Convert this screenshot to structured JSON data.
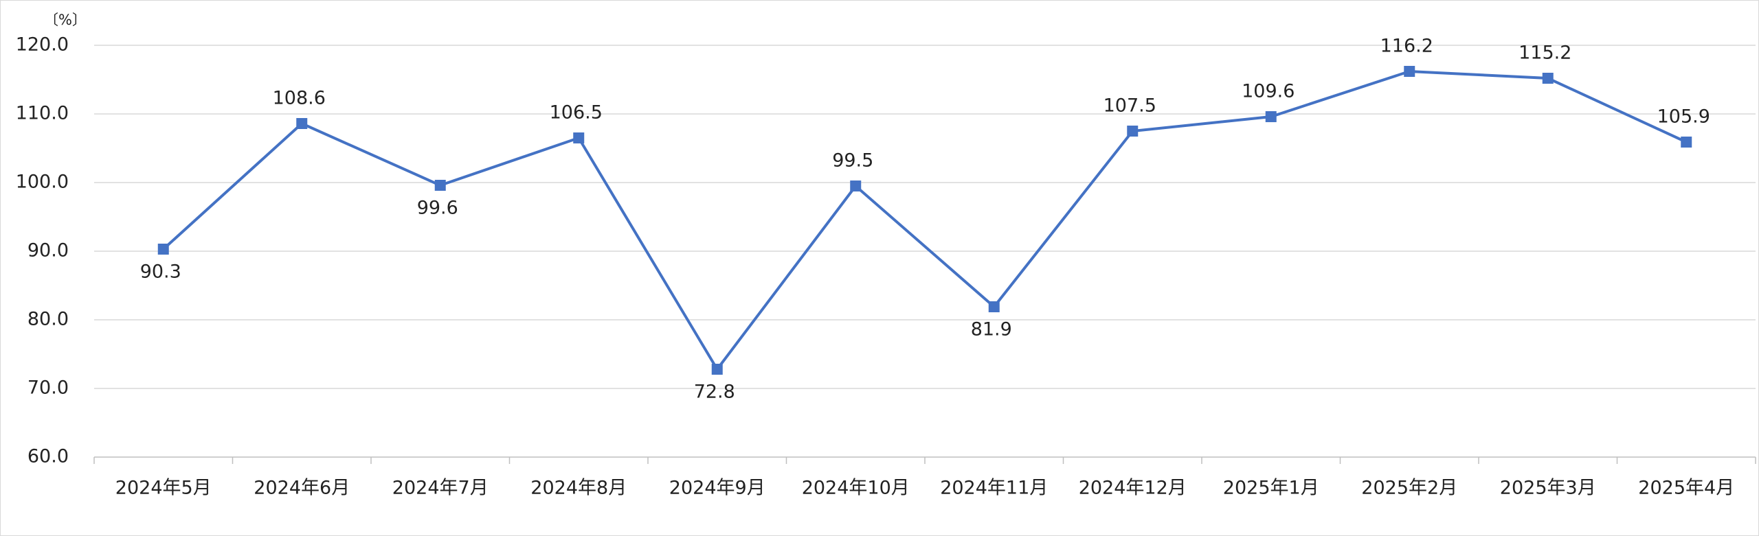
{
  "chart_data": {
    "type": "line",
    "y_label": "〔%〕",
    "categories": [
      "2024年5月",
      "2024年6月",
      "2024年7月",
      "2024年8月",
      "2024年9月",
      "2024年10月",
      "2024年11月",
      "2024年12月",
      "2025年1月",
      "2025年2月",
      "2025年3月",
      "2025年4月"
    ],
    "series": [
      {
        "color": "#4472c4",
        "values": [
          90.3,
          108.6,
          99.6,
          106.5,
          72.8,
          99.5,
          81.9,
          107.5,
          109.6,
          116.2,
          115.2,
          105.9
        ]
      }
    ],
    "ylim": [
      60,
      120
    ],
    "yticks": [
      {
        "value": 60,
        "label": "60.0"
      },
      {
        "value": 70,
        "label": "70.0"
      },
      {
        "value": 80,
        "label": "80.0"
      },
      {
        "value": 90,
        "label": "90.0"
      },
      {
        "value": 100,
        "label": "100.0"
      },
      {
        "value": 110,
        "label": "110.0"
      },
      {
        "value": 120,
        "label": "120.0"
      }
    ],
    "grid": true
  }
}
